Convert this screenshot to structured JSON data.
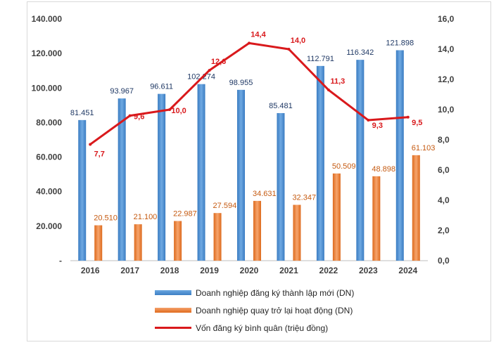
{
  "chart_data": {
    "type": "bar+line",
    "categories": [
      "2016",
      "2017",
      "2018",
      "2019",
      "2020",
      "2021",
      "2022",
      "2023",
      "2024"
    ],
    "series": [
      {
        "name": "Doanh nghiệp đăng ký thành lập mới (DN)",
        "type": "bar",
        "axis": "left",
        "color": "#4a8fd4",
        "values": [
          81451,
          93967,
          96611,
          102274,
          98955,
          85481,
          112791,
          116342,
          121898
        ],
        "labels": [
          "81.451",
          "93.967",
          "96.611",
          "102.274",
          "98.955",
          "85.481",
          "112.791",
          "116.342",
          "121.898"
        ]
      },
      {
        "name": "Doanh nghiệp quay trở lại hoạt động (DN)",
        "type": "bar",
        "axis": "left",
        "color": "#ed7d31",
        "values": [
          20510,
          21100,
          22987,
          27594,
          34631,
          32347,
          50509,
          48898,
          61103
        ],
        "labels": [
          "20.510",
          "21.100",
          "22.987",
          "27.594",
          "34.631",
          "32.347",
          "50.509",
          "48.898",
          "61.103"
        ]
      },
      {
        "name": "Vốn đăng ký bình quân (triệu đồng)",
        "type": "line",
        "axis": "right",
        "color": "#d9191c",
        "values": [
          7.7,
          9.6,
          10.0,
          12.6,
          14.4,
          14.0,
          11.3,
          9.3,
          9.5
        ],
        "labels": [
          "7,7",
          "9,6",
          "10,0",
          "12,6",
          "14,4",
          "14,0",
          "11,3",
          "9,3",
          "9,5"
        ]
      }
    ],
    "ylim_left": [
      0,
      140000
    ],
    "ylim_right": [
      0,
      16
    ],
    "yticks_left": [
      "-",
      "20.000",
      "40.000",
      "60.000",
      "80.000",
      "100.000",
      "120.000",
      "140.000"
    ],
    "yticks_right": [
      "0,0",
      "2,0",
      "4,0",
      "6,0",
      "8,0",
      "10,0",
      "12,0",
      "14,0",
      "16,0"
    ],
    "grid": false,
    "legend_position": "bottom"
  }
}
